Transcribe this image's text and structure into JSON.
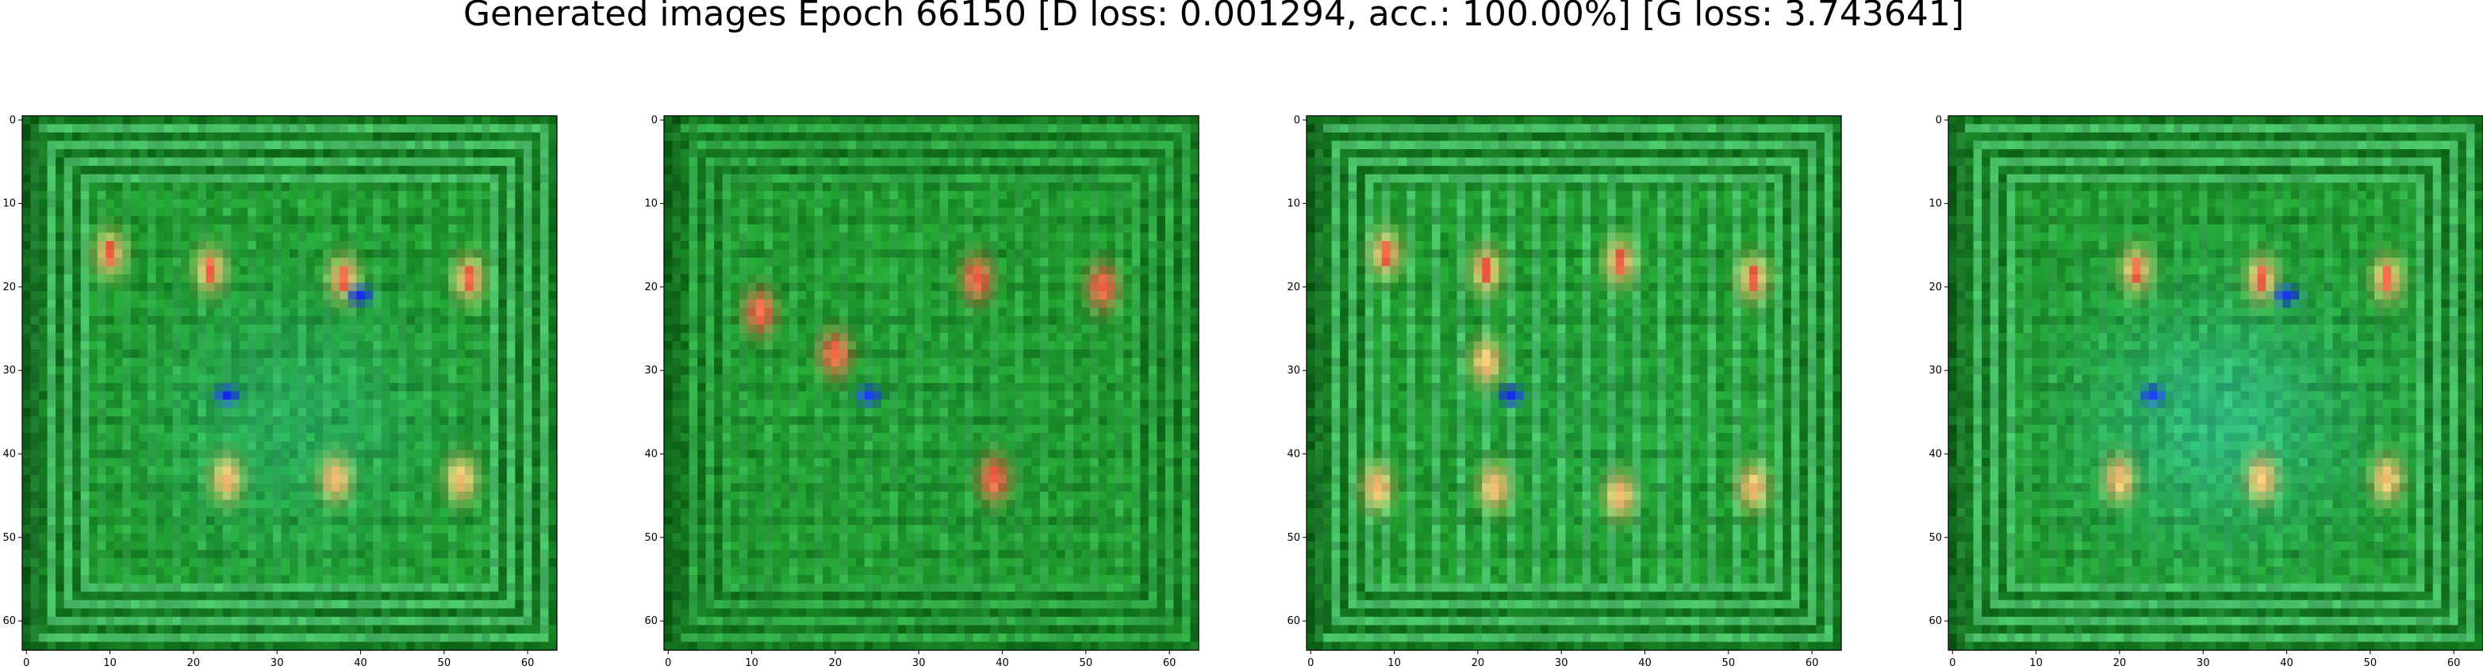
{
  "figure": {
    "title": "Generated images Epoch 66150 [D loss: 0.001294, acc.: 100.00%] [G loss: 3.743641]"
  },
  "panels": [
    {
      "index": 0,
      "description_style": "symmetric-spots"
    },
    {
      "index": 1,
      "description_style": "sparse-red"
    },
    {
      "index": 2,
      "description_style": "vertical-stripes"
    },
    {
      "index": 3,
      "description_style": "teal-tint"
    }
  ],
  "axes": {
    "x_ticks": [
      "0",
      "10",
      "20",
      "30",
      "40",
      "50",
      "60"
    ],
    "y_ticks": [
      "0",
      "10",
      "20",
      "30",
      "40",
      "50",
      "60"
    ],
    "pixel_grid": 64
  },
  "colors": {
    "base_green": "#1f9a2e",
    "dark_green": "#0b5a14",
    "mint": "#8ff5c8",
    "teal": "#37c9a6",
    "red": "#f02a2a",
    "orange": "#f1a23a",
    "cream": "#f6e6b0",
    "blue": "#1a3af0"
  }
}
